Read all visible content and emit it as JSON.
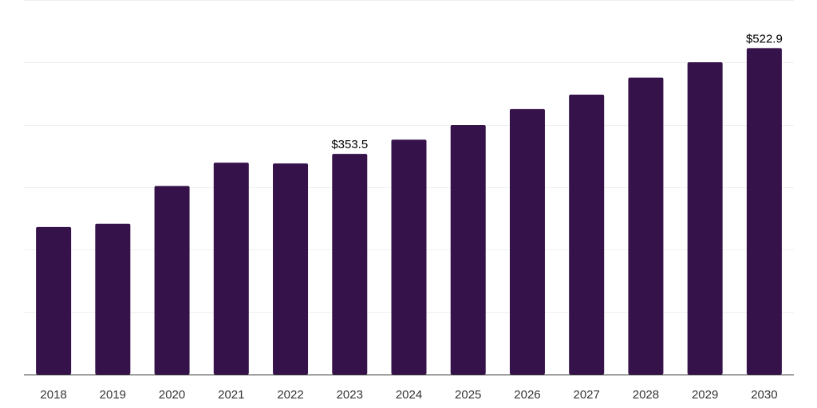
{
  "chart_data": {
    "type": "bar",
    "categories": [
      "2018",
      "2019",
      "2020",
      "2021",
      "2022",
      "2023",
      "2024",
      "2025",
      "2026",
      "2027",
      "2028",
      "2029",
      "2030"
    ],
    "values": [
      236.4,
      241.6,
      302.1,
      339.4,
      338.1,
      353.5,
      376.2,
      399.5,
      425.3,
      448.4,
      475.5,
      500.3,
      522.9
    ],
    "data_labels": [
      {
        "index": 5,
        "text": "$353.5"
      },
      {
        "index": 12,
        "text": "$522.9"
      }
    ],
    "ylim": [
      0,
      600
    ],
    "yticks": [
      0,
      100,
      200,
      300,
      400,
      500,
      600
    ],
    "grid": true,
    "bar_color": "#36124a",
    "title": "",
    "xlabel": "",
    "ylabel": ""
  }
}
